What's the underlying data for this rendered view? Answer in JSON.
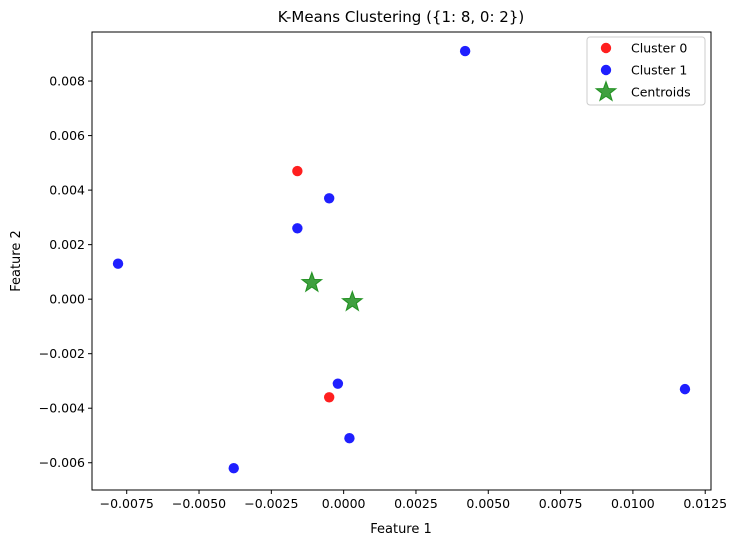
{
  "chart_data": {
    "type": "scatter",
    "title": "K-Means Clustering ({1: 8, 0: 2})",
    "xlabel": "Feature 1",
    "ylabel": "Feature 2",
    "xlim": [
      -0.0087,
      0.0127
    ],
    "ylim": [
      -0.007,
      0.0098
    ],
    "x_ticks": [
      -0.0075,
      -0.005,
      -0.0025,
      0.0,
      0.0025,
      0.005,
      0.0075,
      0.01,
      0.0125
    ],
    "x_tick_labels": [
      "−0.0075",
      "−0.0050",
      "−0.0025",
      "0.0000",
      "0.0025",
      "0.0050",
      "0.0075",
      "0.0100",
      "0.0125"
    ],
    "y_ticks": [
      -0.006,
      -0.004,
      -0.002,
      0.0,
      0.002,
      0.004,
      0.006,
      0.008
    ],
    "y_tick_labels": [
      "−0.006",
      "−0.004",
      "−0.002",
      "0.000",
      "0.002",
      "0.004",
      "0.006",
      "0.008"
    ],
    "grid": false,
    "legend_position": "top-right",
    "series": [
      {
        "name": "Cluster 0",
        "color": "#ff0000",
        "marker": "circle",
        "points": [
          {
            "x": -0.0016,
            "y": 0.0047
          },
          {
            "x": -0.0005,
            "y": -0.0036
          }
        ]
      },
      {
        "name": "Cluster 1",
        "color": "#0000ff",
        "marker": "circle",
        "points": [
          {
            "x": 0.0042,
            "y": 0.0091
          },
          {
            "x": -0.0005,
            "y": 0.0037
          },
          {
            "x": -0.0016,
            "y": 0.0026
          },
          {
            "x": -0.0078,
            "y": 0.0013
          },
          {
            "x": -0.0002,
            "y": -0.0031
          },
          {
            "x": 0.0002,
            "y": -0.0051
          },
          {
            "x": -0.0038,
            "y": -0.0062
          },
          {
            "x": 0.0118,
            "y": -0.0033
          }
        ]
      },
      {
        "name": "Centroids",
        "color": "#008000",
        "marker": "star",
        "points": [
          {
            "x": -0.0011,
            "y": 0.0006
          },
          {
            "x": 0.0003,
            "y": -0.0001
          }
        ]
      }
    ]
  }
}
